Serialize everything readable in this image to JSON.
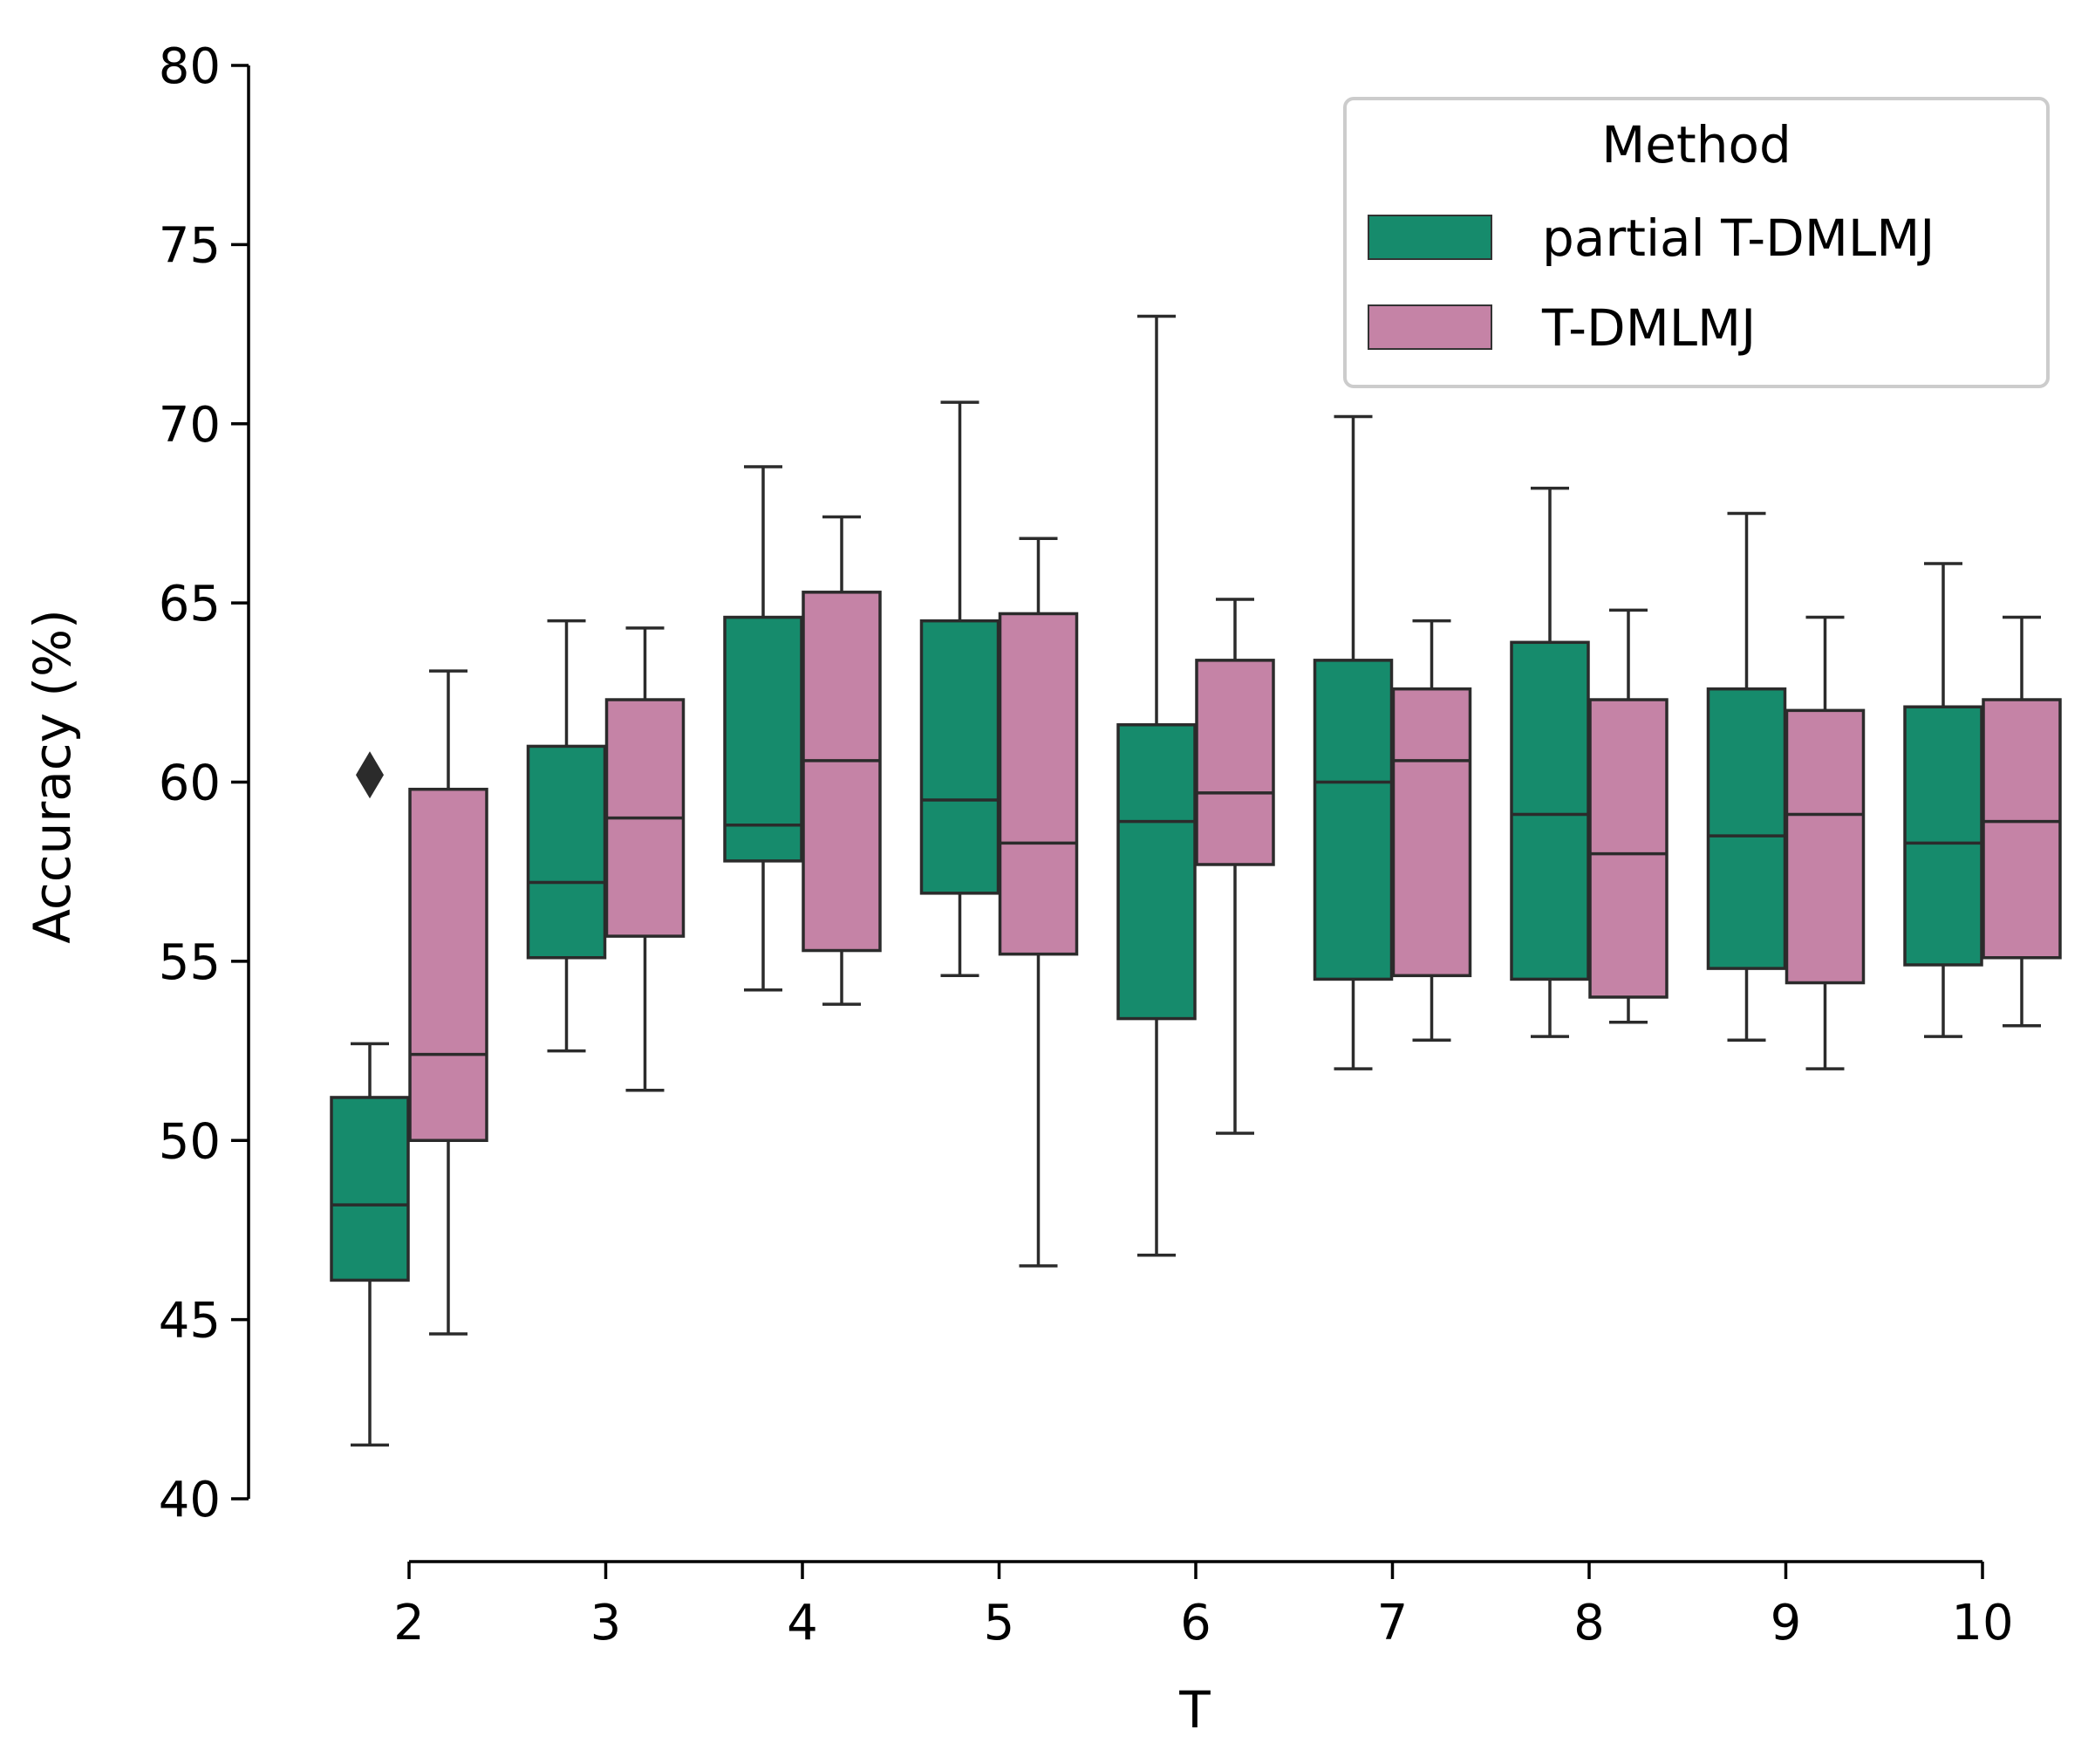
{
  "chart_data": {
    "type": "box",
    "xlabel": "T",
    "ylabel": "Accuracy (%)",
    "ylim": [
      40,
      80
    ],
    "y_ticks": [
      "40",
      "45",
      "50",
      "55",
      "60",
      "65",
      "70",
      "75",
      "80"
    ],
    "categories": [
      "2",
      "3",
      "4",
      "5",
      "6",
      "7",
      "8",
      "9",
      "10"
    ],
    "grid": false,
    "legend": {
      "title": "Method",
      "placement": "top-right"
    },
    "series": [
      {
        "name": "partial T-DMLMJ",
        "color": "#168b6c",
        "boxes": [
          {
            "whisker_low": 41.5,
            "q1": 46.1,
            "median": 48.2,
            "q3": 51.2,
            "whisker_high": 52.7,
            "outliers": [
              60.2
            ]
          },
          {
            "whisker_low": 52.5,
            "q1": 55.1,
            "median": 57.2,
            "q3": 61.0,
            "whisker_high": 64.5,
            "outliers": []
          },
          {
            "whisker_low": 54.2,
            "q1": 57.8,
            "median": 58.8,
            "q3": 64.6,
            "whisker_high": 68.8,
            "outliers": []
          },
          {
            "whisker_low": 54.6,
            "q1": 56.9,
            "median": 59.5,
            "q3": 64.5,
            "whisker_high": 70.6,
            "outliers": []
          },
          {
            "whisker_low": 46.8,
            "q1": 53.4,
            "median": 58.9,
            "q3": 61.6,
            "whisker_high": 73.0,
            "outliers": []
          },
          {
            "whisker_low": 52.0,
            "q1": 54.5,
            "median": 60.0,
            "q3": 63.4,
            "whisker_high": 70.2,
            "outliers": []
          },
          {
            "whisker_low": 52.9,
            "q1": 54.5,
            "median": 59.1,
            "q3": 63.9,
            "whisker_high": 68.2,
            "outliers": []
          },
          {
            "whisker_low": 52.8,
            "q1": 54.8,
            "median": 58.5,
            "q3": 62.6,
            "whisker_high": 67.5,
            "outliers": []
          },
          {
            "whisker_low": 52.9,
            "q1": 54.9,
            "median": 58.3,
            "q3": 62.1,
            "whisker_high": 66.1,
            "outliers": []
          }
        ]
      },
      {
        "name": "T-DMLMJ",
        "color": "#c583a6",
        "boxes": [
          {
            "whisker_low": 44.6,
            "q1": 50.0,
            "median": 52.4,
            "q3": 59.8,
            "whisker_high": 63.1,
            "outliers": []
          },
          {
            "whisker_low": 51.4,
            "q1": 55.7,
            "median": 59.0,
            "q3": 62.3,
            "whisker_high": 64.3,
            "outliers": []
          },
          {
            "whisker_low": 53.8,
            "q1": 55.3,
            "median": 60.6,
            "q3": 65.3,
            "whisker_high": 67.4,
            "outliers": []
          },
          {
            "whisker_low": 46.5,
            "q1": 55.2,
            "median": 58.3,
            "q3": 64.7,
            "whisker_high": 66.8,
            "outliers": []
          },
          {
            "whisker_low": 50.2,
            "q1": 57.7,
            "median": 59.7,
            "q3": 63.4,
            "whisker_high": 65.1,
            "outliers": []
          },
          {
            "whisker_low": 52.8,
            "q1": 54.6,
            "median": 60.6,
            "q3": 62.6,
            "whisker_high": 64.5,
            "outliers": []
          },
          {
            "whisker_low": 53.3,
            "q1": 54.0,
            "median": 58.0,
            "q3": 62.3,
            "whisker_high": 64.8,
            "outliers": []
          },
          {
            "whisker_low": 52.0,
            "q1": 54.4,
            "median": 59.1,
            "q3": 62.0,
            "whisker_high": 64.6,
            "outliers": []
          },
          {
            "whisker_low": 53.2,
            "q1": 55.1,
            "median": 58.9,
            "q3": 62.3,
            "whisker_high": 64.6,
            "outliers": []
          }
        ]
      }
    ]
  }
}
